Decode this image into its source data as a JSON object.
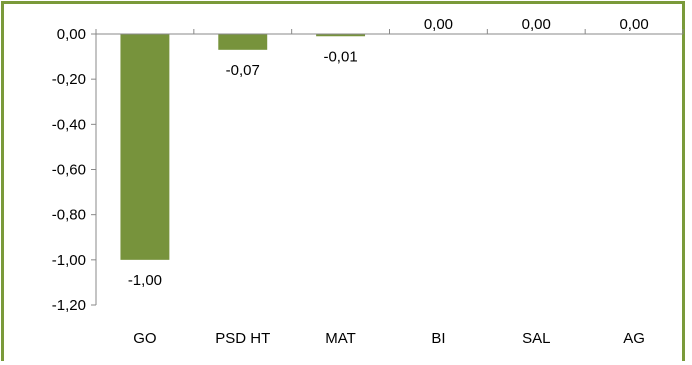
{
  "chart_data": {
    "type": "bar",
    "categories": [
      "GO",
      "PSD HT",
      "MAT",
      "BI",
      "SAL",
      "AG"
    ],
    "values": [
      -1.0,
      -0.07,
      -0.01,
      0.0,
      0.0,
      0.0
    ],
    "data_labels": [
      "-1,00",
      "-0,07",
      "-0,01",
      "0,00",
      "0,00",
      "0,00"
    ],
    "title": "",
    "xlabel": "",
    "ylabel": "",
    "ylim": [
      -1.2,
      0
    ],
    "y_ticks": [
      0,
      -0.2,
      -0.4,
      -0.6,
      -0.8,
      -1.0,
      -1.2
    ],
    "y_tick_labels": [
      "0,00",
      "-0,20",
      "-0,40",
      "-0,60",
      "-0,80",
      "-1,00",
      "-1,20"
    ],
    "grid": false,
    "legend": "none",
    "bar_color": "#77933c",
    "frame_color": "#7a9a3a"
  }
}
